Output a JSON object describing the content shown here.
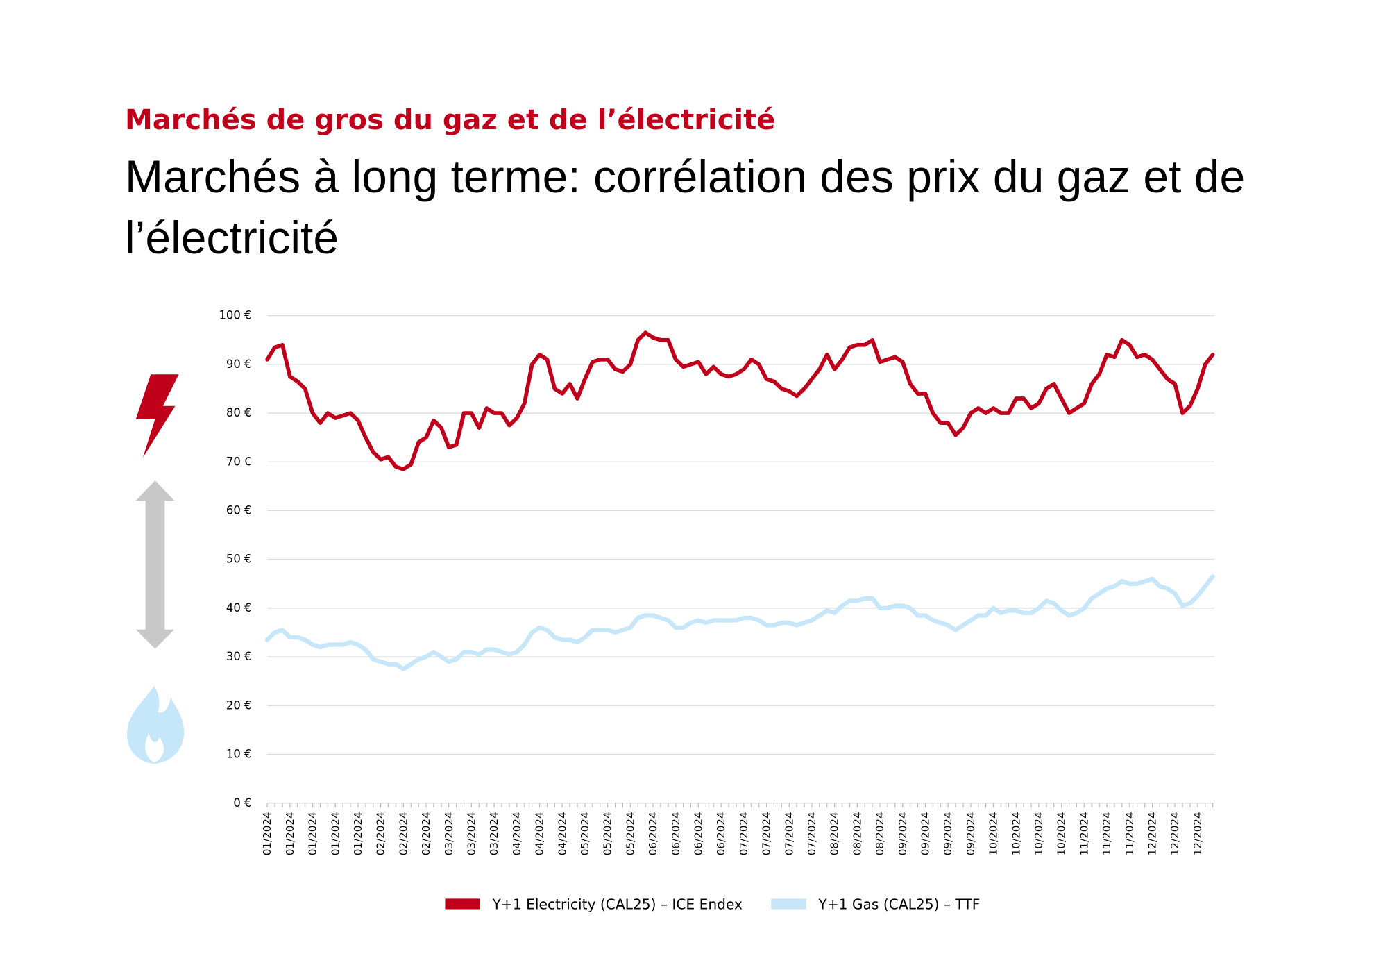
{
  "chart_data": {
    "type": "line",
    "supertitle": "Marchés de gros du gaz et de l’électricité",
    "title": "Marchés à long terme: corrélation des prix du gaz et de l’électricité",
    "categories": [
      "01/2024",
      null,
      null,
      "01/2024",
      null,
      null,
      "01/2024",
      null,
      null,
      "01/2024",
      null,
      null,
      "01/2024",
      null,
      null,
      "02/2024",
      null,
      null,
      "02/2024",
      null,
      null,
      "02/2024",
      null,
      null,
      "03/2024",
      null,
      null,
      "03/2024",
      null,
      null,
      "03/2024",
      null,
      null,
      "04/2024",
      null,
      null,
      "04/2024",
      null,
      null,
      "04/2024",
      null,
      null,
      "05/2024",
      null,
      null,
      "05/2024",
      null,
      null,
      "05/2024",
      null,
      null,
      "06/2024",
      null,
      null,
      "06/2024",
      null,
      null,
      "06/2024",
      null,
      null,
      "06/2024",
      null,
      null,
      "07/2024",
      null,
      null,
      "07/2024",
      null,
      null,
      "07/2024",
      null,
      null,
      "07/2024",
      null,
      null,
      "08/2024",
      null,
      null,
      "08/2024",
      null,
      null,
      "08/2024",
      null,
      null,
      "09/2024",
      null,
      null,
      "09/2024",
      null,
      null,
      "09/2024",
      null,
      null,
      "09/2024",
      null,
      null,
      "10/2024",
      null,
      null,
      "10/2024",
      null,
      null,
      "10/2024",
      null,
      null,
      "10/2024",
      null,
      null,
      "11/2024",
      null,
      null,
      "11/2024",
      null,
      null,
      "11/2024",
      null,
      null,
      "12/2024",
      null,
      null,
      "12/2024",
      null,
      null,
      "12/2024",
      null,
      null
    ],
    "series": [
      {
        "name": "Y+1 Gas (CAL25) – TTF",
        "color": "#c6e6fa",
        "values": [
          33.5,
          35,
          35.5,
          34,
          34,
          33.5,
          32.5,
          32,
          32.5,
          32.5,
          32.5,
          33,
          32.5,
          31.5,
          29.5,
          29,
          28.5,
          28.5,
          27.5,
          28.5,
          29.5,
          30,
          31,
          30,
          29,
          29.5,
          31,
          31,
          30.5,
          31.5,
          31.5,
          31,
          30.5,
          31,
          32.5,
          35,
          36,
          35.5,
          34,
          33.5,
          33.5,
          33,
          34,
          35.5,
          35.5,
          35.5,
          35,
          35.5,
          36,
          38,
          38.5,
          38.5,
          38,
          37.5,
          36,
          36,
          37,
          37.5,
          37,
          37.5,
          37.5,
          37.5,
          37.5,
          38,
          38,
          37.5,
          36.5,
          36.5,
          37,
          37,
          36.5,
          37,
          37.5,
          38.5,
          39.5,
          39,
          40.5,
          41.5,
          41.5,
          42,
          42,
          40,
          40,
          40.5,
          40.5,
          40,
          38.5,
          38.5,
          37.5,
          37,
          36.5,
          35.5,
          36.5,
          37.5,
          38.5,
          38.5,
          40,
          39,
          39.5,
          39.5,
          39,
          39,
          40,
          41.5,
          41,
          39.5,
          38.5,
          39,
          40,
          42,
          43,
          44,
          44.5,
          45.5,
          45,
          45,
          45.5,
          46,
          44.5,
          44,
          43,
          40.5,
          41,
          42.5,
          44.5,
          46.5
        ]
      },
      {
        "name": "Y+1 Electricity (CAL25) – ICE Endex",
        "color": "#c0001a",
        "values": [
          91,
          93.5,
          94,
          87.5,
          86.5,
          85,
          80,
          78,
          80,
          79,
          79.5,
          80,
          78.5,
          75,
          72,
          70.5,
          71,
          69,
          68.5,
          69.5,
          74,
          75,
          78.5,
          77,
          73,
          73.5,
          80,
          80,
          77,
          81,
          80,
          80,
          77.5,
          79,
          82,
          90,
          92,
          91,
          85,
          84,
          86,
          83,
          87,
          90.5,
          91,
          91,
          89,
          88.5,
          90,
          95,
          96.5,
          95.5,
          95,
          95,
          91,
          89.5,
          90,
          90.5,
          88,
          89.5,
          88,
          87.5,
          88,
          89,
          91,
          90,
          87,
          86.5,
          85,
          84.5,
          83.5,
          85,
          87,
          89,
          92,
          89,
          91,
          93.5,
          94,
          94,
          95,
          90.5,
          91,
          91.5,
          90.5,
          86,
          84,
          84,
          80,
          78,
          78,
          75.5,
          77,
          80,
          81,
          80,
          81,
          80,
          80,
          83,
          83,
          81,
          82,
          85,
          86,
          83,
          80,
          81,
          82,
          86,
          88,
          92,
          91.5,
          95,
          94,
          91.5,
          92,
          91,
          89,
          87,
          86,
          80,
          81.5,
          85,
          90,
          92
        ]
      }
    ],
    "ylim": [
      0,
      100
    ],
    "yticks": [
      {
        "value": 0,
        "label": "0 €"
      },
      {
        "value": 10,
        "label": "10 €"
      },
      {
        "value": 20,
        "label": "20 €"
      },
      {
        "value": 30,
        "label": "30 €"
      },
      {
        "value": 40,
        "label": "40 €"
      },
      {
        "value": 50,
        "label": "50 €"
      },
      {
        "value": 60,
        "label": "60 €"
      },
      {
        "value": 70,
        "label": "70 €"
      },
      {
        "value": 80,
        "label": "80 €"
      },
      {
        "value": 90,
        "label": "90 €"
      },
      {
        "value": 100,
        "label": "100 €"
      }
    ],
    "grid": true
  }
}
